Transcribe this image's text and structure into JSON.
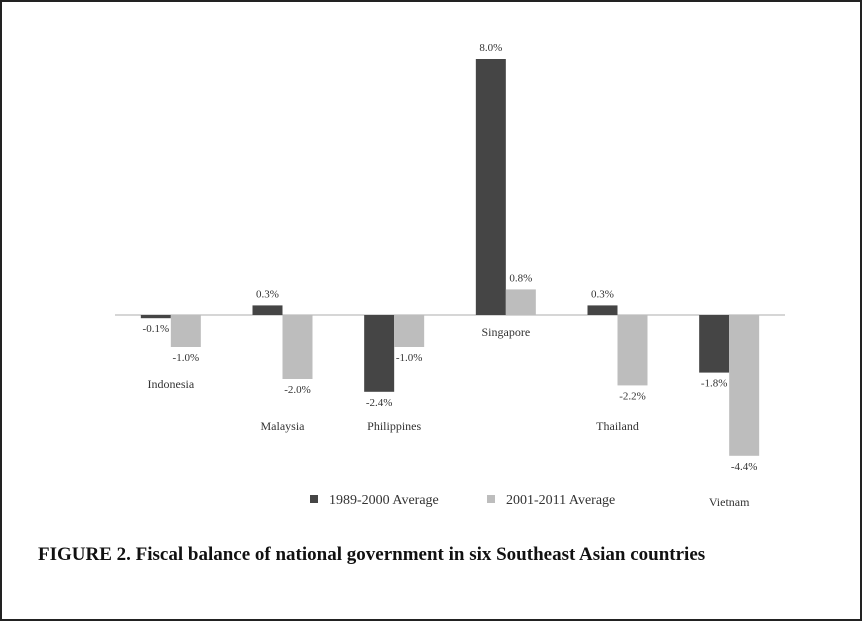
{
  "caption": "FIGURE 2. Fiscal balance of national government in six Southeast Asian countries",
  "chart_data": {
    "type": "bar",
    "categories": [
      "Indonesia",
      "Malaysia",
      "Philippines",
      "Singapore",
      "Thailand",
      "Vietnam"
    ],
    "series": [
      {
        "name": "1989-2000 Average",
        "values": [
          -0.1,
          0.3,
          -2.4,
          8.0,
          0.3,
          -1.8
        ],
        "labels": [
          "-0.1%",
          "0.3%",
          "-2.4%",
          "8.0%",
          "0.3%",
          "-1.8%"
        ],
        "color": "#454545"
      },
      {
        "name": "2001-2011 Average",
        "values": [
          -1.0,
          -2.0,
          -1.0,
          0.8,
          -2.2,
          -4.4
        ],
        "labels": [
          "-1.0%",
          "-2.0%",
          "-1.0%",
          "0.8%",
          "-2.2%",
          "-4.4%"
        ],
        "color": "#bdbdbd"
      }
    ],
    "ylim": [
      -4.4,
      8.0
    ],
    "grid": false,
    "legend_position": "bottom"
  }
}
